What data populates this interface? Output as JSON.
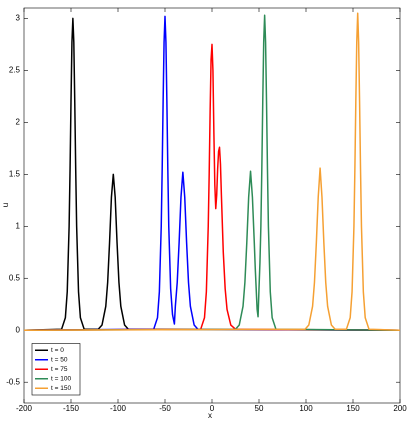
{
  "chart_data": {
    "type": "line",
    "x_label": "x",
    "y_label": "u",
    "xlim": [
      -200,
      200
    ],
    "xticks": [
      -200,
      -150,
      -100,
      -50,
      0,
      50,
      100,
      150,
      200
    ],
    "ylim": [
      -0.7,
      3.1
    ],
    "yticks": [
      -0.5,
      0,
      0.5,
      1,
      1.5,
      2,
      2.5,
      3
    ],
    "grid": false,
    "legend": "lower left",
    "series": [
      {
        "name": "t = 0",
        "color": "#000000",
        "x": [
          -200,
          -160,
          -156,
          -154,
          -152,
          -151,
          -150,
          -149,
          -148,
          -147,
          -146,
          -145,
          -144,
          -142,
          -140,
          -136,
          -121,
          -117,
          -113,
          -111,
          -109,
          -107,
          -105,
          -103,
          -101,
          -99,
          -97,
          -93,
          -89,
          200
        ],
        "values": [
          0,
          0.01,
          0.12,
          0.37,
          1.0,
          1.55,
          2.2,
          2.77,
          3,
          2.77,
          2.2,
          1.55,
          1.0,
          0.37,
          0.12,
          0.01,
          0.01,
          0.05,
          0.23,
          0.46,
          0.84,
          1.28,
          1.5,
          1.28,
          0.84,
          0.46,
          0.23,
          0.05,
          0.01,
          0
        ]
      },
      {
        "name": "t = 50",
        "color": "#0000ff",
        "x": [
          -200,
          -62,
          -58,
          -56,
          -54,
          -53,
          -52,
          -51,
          -50,
          -49,
          -48,
          -47,
          -46,
          -44,
          -42,
          -40,
          -39,
          -37,
          -35,
          -33,
          -31,
          -29,
          -27,
          -25,
          -23,
          -19,
          -15,
          200
        ],
        "values": [
          0,
          0.01,
          0.12,
          0.37,
          1.0,
          1.55,
          2.2,
          2.77,
          3.02,
          2.77,
          2.2,
          1.55,
          1.0,
          0.4,
          0.15,
          0.06,
          0.23,
          0.46,
          0.84,
          1.28,
          1.52,
          1.28,
          0.84,
          0.46,
          0.23,
          0.05,
          0.01,
          0
        ]
      },
      {
        "name": "t = 75",
        "color": "#ff0000",
        "x": [
          -200,
          -12,
          -8,
          -6,
          -4,
          -3,
          -2,
          -1,
          0,
          1,
          2,
          3,
          4,
          5,
          6,
          7,
          8,
          9,
          10,
          12,
          14,
          16,
          20,
          25,
          200
        ],
        "values": [
          0,
          0.01,
          0.12,
          0.37,
          1.0,
          1.5,
          2.1,
          2.6,
          2.75,
          2.5,
          1.9,
          1.4,
          1.17,
          1.3,
          1.55,
          1.72,
          1.76,
          1.6,
          1.3,
          0.75,
          0.4,
          0.2,
          0.05,
          0.01,
          0
        ]
      },
      {
        "name": "t = 100",
        "color": "#2e8b57",
        "x": [
          -200,
          25,
          29,
          33,
          35,
          37,
          39,
          41,
          43,
          45,
          46,
          47,
          48,
          49,
          50,
          51,
          52,
          53,
          54,
          55,
          56,
          57,
          58,
          59,
          60,
          62,
          64,
          68,
          200
        ],
        "values": [
          0,
          0.01,
          0.05,
          0.23,
          0.46,
          0.84,
          1.28,
          1.53,
          1.28,
          0.84,
          0.6,
          0.4,
          0.2,
          0.13,
          0.4,
          0.65,
          1.0,
          1.55,
          2.2,
          2.77,
          3.03,
          2.77,
          2.2,
          1.55,
          1.0,
          0.37,
          0.12,
          0.01,
          0
        ]
      },
      {
        "name": "t = 150",
        "color": "#f5a033",
        "x": [
          -200,
          99,
          103,
          107,
          109,
          111,
          113,
          115,
          117,
          119,
          121,
          123,
          127,
          131,
          143,
          147,
          149,
          151,
          152,
          153,
          154,
          155,
          156,
          157,
          158,
          159,
          161,
          163,
          167,
          200
        ],
        "values": [
          0,
          0.01,
          0.05,
          0.23,
          0.46,
          0.84,
          1.28,
          1.56,
          1.28,
          0.84,
          0.46,
          0.23,
          0.05,
          0.01,
          0.01,
          0.12,
          0.37,
          1.0,
          1.55,
          2.2,
          2.77,
          3.05,
          2.77,
          2.2,
          1.55,
          1.0,
          0.37,
          0.12,
          0.01,
          0
        ]
      }
    ]
  }
}
